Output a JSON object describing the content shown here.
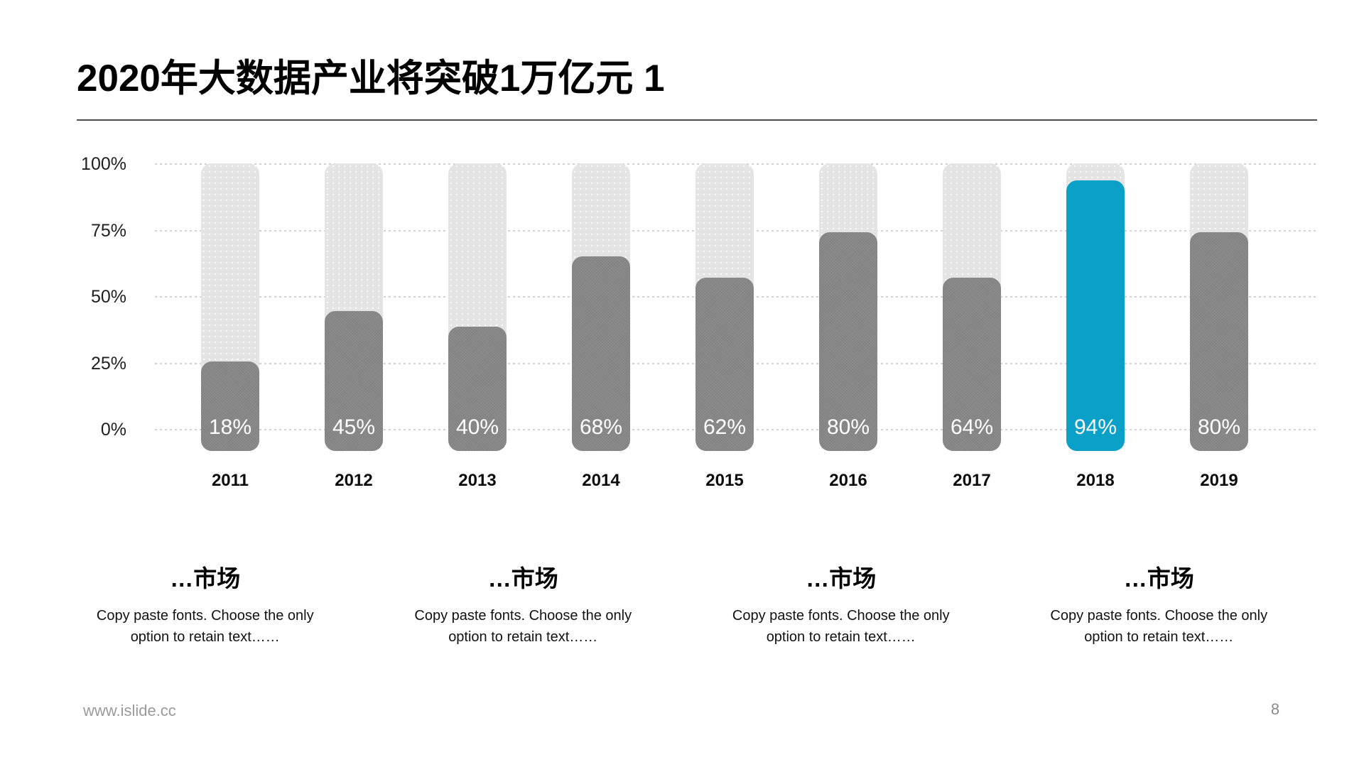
{
  "slide": {
    "title": "2020年大数据产业将突破1万亿元 1",
    "footer": {
      "website": "www.islide.cc",
      "page_number": "8"
    }
  },
  "chart_data": {
    "type": "bar",
    "title": "2020年大数据产业将突破1万亿元 1",
    "categories": [
      "2011",
      "2012",
      "2013",
      "2014",
      "2015",
      "2016",
      "2017",
      "2018",
      "2019"
    ],
    "values": [
      18,
      45,
      40,
      68,
      62,
      80,
      64,
      94,
      80
    ],
    "value_labels": [
      "18%",
      "45%",
      "40%",
      "68%",
      "62%",
      "80%",
      "64%",
      "94%",
      "80%"
    ],
    "drawn_heights_pct": [
      25.5,
      44.5,
      38.5,
      65,
      57,
      74,
      57,
      93.5,
      74
    ],
    "highlight_index": 7,
    "xlabel": "",
    "ylabel": "",
    "ylim": [
      0,
      100
    ],
    "y_ticks": [
      {
        "label": "100%",
        "value": 100
      },
      {
        "label": "75%",
        "value": 75
      },
      {
        "label": "50%",
        "value": 50
      },
      {
        "label": "25%",
        "value": 25
      },
      {
        "label": "0%",
        "value": 0
      }
    ],
    "grid": "horizontal-dashed",
    "legend": "none",
    "colors": {
      "bar": "#878787",
      "highlight": "#0aa0c8",
      "track": "#e4e4e4",
      "value_label": "#ffffff",
      "gridline": "#d2d2d2"
    }
  },
  "insights": [
    {
      "heading": "…市场",
      "body": "Copy paste fonts. Choose the only option to retain text……"
    },
    {
      "heading": "…市场",
      "body": "Copy paste fonts. Choose the only option to retain text……"
    },
    {
      "heading": "…市场",
      "body": "Copy paste fonts. Choose the only option to retain text……"
    },
    {
      "heading": "…市场",
      "body": "Copy paste fonts. Choose the only option to retain text……"
    }
  ]
}
